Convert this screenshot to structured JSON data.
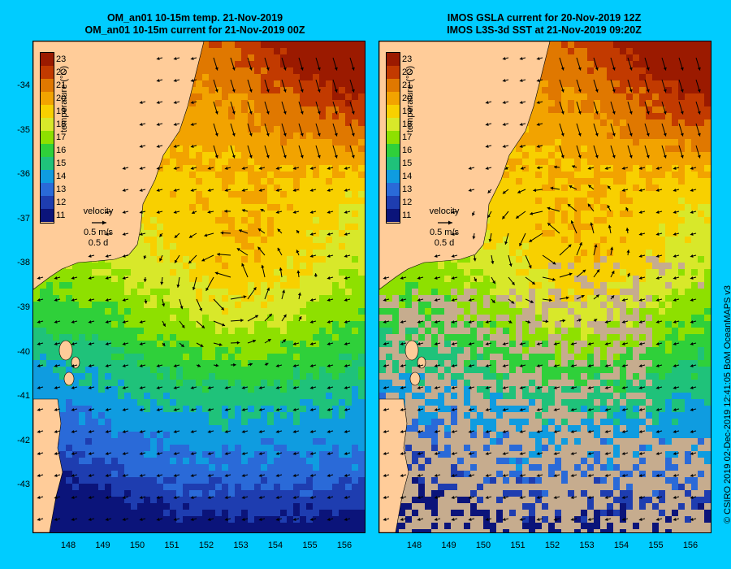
{
  "colors": {
    "frame": "#00ccff",
    "land": "#ffcc99",
    "no_data": "#c6ac8e",
    "arrow": "#000000"
  },
  "colorbar": {
    "label": "temperature (°C)",
    "ticks": [
      "23",
      "22",
      "21",
      "20",
      "19",
      "18",
      "17",
      "16",
      "15",
      "14",
      "13",
      "12",
      "11"
    ],
    "colors": [
      "#9b1a00",
      "#c23a00",
      "#e07800",
      "#f2a300",
      "#f8d000",
      "#d8e82a",
      "#8ee000",
      "#2fd03a",
      "#1fc27a",
      "#0f9ce0",
      "#2a6ad8",
      "#1e3db0",
      "#0b147a"
    ]
  },
  "legend": {
    "title": "velocity",
    "speed": "0.5 m/s",
    "time": "0.5 d"
  },
  "axes": {
    "lat_labels": [
      "-34",
      "-35",
      "-36",
      "-37",
      "-38",
      "-39",
      "-40",
      "-41",
      "-42",
      "-43"
    ],
    "lon_labels": [
      "148",
      "149",
      "150",
      "151",
      "152",
      "153",
      "154",
      "155",
      "156"
    ]
  },
  "panels": [
    {
      "title_line1": "OM_an01 10-15m temp. 21-Nov-2019",
      "title_line2": "OM_an01 10-15m current for 21-Nov-2019 00Z",
      "type": "model"
    },
    {
      "title_line1": "IMOS GSLA current for 20-Nov-2019 12Z",
      "title_line2": "IMOS L3S-3d SST at 21-Nov-2019 09:20Z",
      "type": "satellite"
    }
  ],
  "credit": "© CSIRO 2019   02-Dec-2019 12:41:05 BoM OceanMAPS v3"
}
